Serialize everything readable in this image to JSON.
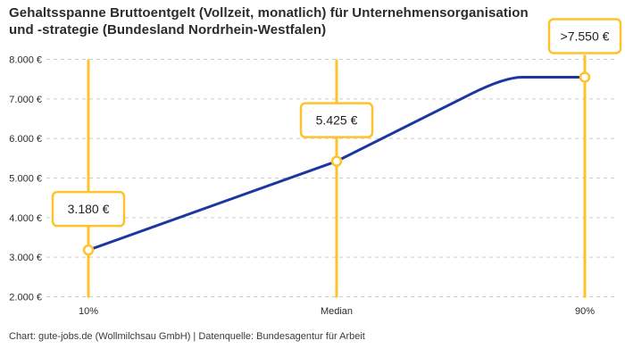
{
  "header": {
    "title_line1": "Gehaltsspanne Bruttoentgelt (Vollzeit, monatlich) für Unternehmensorganisation",
    "title_line2": "und -strategie (Bundesland Nordrhein-Westfalen)"
  },
  "footer": {
    "credit": "Chart: gute-jobs.de (Wollmilchsau GmbH) | Datenquelle: Bundesagentur für Arbeit"
  },
  "colors": {
    "accent_yellow": "#FDC32B",
    "line_blue": "#1E379E",
    "grid": "#CCCCCC",
    "tick_text": "#2B2B2B",
    "label_text": "#222222",
    "marker_fill": "#FFFFFF"
  },
  "chart_data": {
    "type": "line",
    "title": "Gehaltsspanne Bruttoentgelt (Vollzeit, monatlich) für Unternehmensorganisation und -strategie (Bundesland Nordrhein-Westfalen)",
    "categories": [
      "10%",
      "Median",
      "90%"
    ],
    "values": [
      3180,
      5425,
      7550
    ],
    "point_labels": [
      "3.180 €",
      "5.425 €",
      ">7.550 €"
    ],
    "ylim": [
      2000,
      8000
    ],
    "yticks": [
      2000,
      3000,
      4000,
      5000,
      6000,
      7000,
      8000
    ],
    "ytick_labels": [
      "2.000 €",
      "3.000 €",
      "4.000 €",
      "5.000 €",
      "6.000 €",
      "7.000 €",
      "8.000 €"
    ],
    "grid": "dashed-horizontal",
    "legend": "none",
    "notes": "Line rises from 10% percentile through median, flattens into a plateau at the 90% value; each percentile marked by vertical accent line, open-circle marker and framed value label",
    "plateau_at_last_value": true
  }
}
